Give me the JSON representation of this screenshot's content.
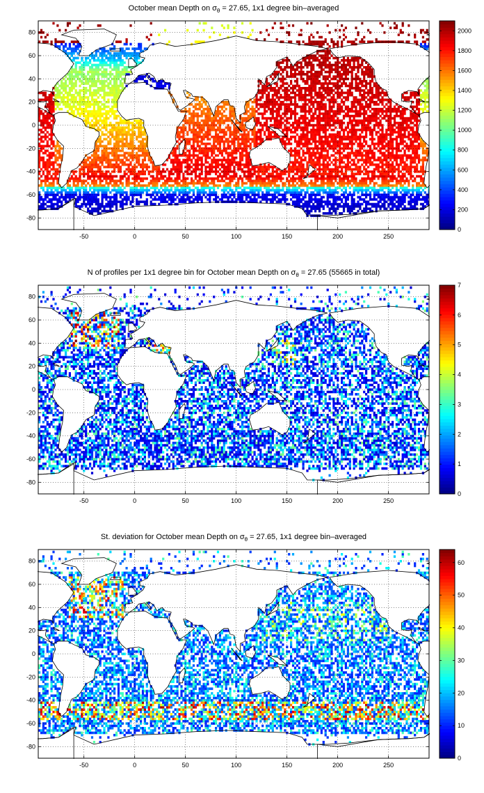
{
  "chart_data": [
    {
      "type": "heatmap",
      "title": {
        "pre": "October mean Depth on σ",
        "sub": "θ",
        "post": " = 27.65, 1x1 degree bin–averaged"
      },
      "x_ticks": [
        "-50",
        "0",
        "50",
        "100",
        "150",
        "200",
        "250"
      ],
      "x_values": [
        -50,
        0,
        50,
        100,
        150,
        200,
        250
      ],
      "xlim": [
        -95,
        290
      ],
      "y_ticks": [
        "80",
        "60",
        "40",
        "20",
        "0",
        "-20",
        "-40",
        "-60",
        "-80"
      ],
      "y_values": [
        80,
        60,
        40,
        20,
        0,
        -20,
        -40,
        -60,
        -80
      ],
      "ylim": [
        -90,
        90
      ],
      "grid": true,
      "colorbar": {
        "ticks": [
          "0",
          "200",
          "400",
          "600",
          "800",
          "1000",
          "1200",
          "1400",
          "1600",
          "1800",
          "2000"
        ],
        "values": [
          0,
          200,
          400,
          600,
          800,
          1000,
          1200,
          1400,
          1600,
          1800,
          2000
        ],
        "range": [
          0,
          2100
        ],
        "colormap": "jet"
      },
      "field": "mean_depth"
    },
    {
      "type": "heatmap",
      "title": {
        "pre": "N of profiles per 1x1 degree bin for October mean Depth on σ",
        "sub": "θ",
        "post": " = 27.65 (55665 in total)"
      },
      "x_ticks": [
        "-50",
        "0",
        "50",
        "100",
        "150",
        "200",
        "250"
      ],
      "x_values": [
        -50,
        0,
        50,
        100,
        150,
        200,
        250
      ],
      "xlim": [
        -95,
        290
      ],
      "y_ticks": [
        "80",
        "60",
        "40",
        "20",
        "0",
        "-20",
        "-40",
        "-60",
        "-80"
      ],
      "y_values": [
        80,
        60,
        40,
        20,
        0,
        -20,
        -40,
        -60,
        -80
      ],
      "ylim": [
        -90,
        90
      ],
      "grid": true,
      "colorbar": {
        "ticks": [
          "0",
          "1",
          "2",
          "3",
          "4",
          "5",
          "6",
          "7"
        ],
        "values": [
          0,
          1,
          2,
          3,
          4,
          5,
          6,
          7
        ],
        "range": [
          0,
          7
        ],
        "colormap": "jet"
      },
      "field": "profile_count"
    },
    {
      "type": "heatmap",
      "title": {
        "pre": "St. deviation for October mean Depth on σ",
        "sub": "θ",
        "post": " = 27.65, 1x1 degree bin–averaged"
      },
      "x_ticks": [
        "-50",
        "0",
        "50",
        "100",
        "150",
        "200",
        "250"
      ],
      "x_values": [
        -50,
        0,
        50,
        100,
        150,
        200,
        250
      ],
      "xlim": [
        -95,
        290
      ],
      "y_ticks": [
        "80",
        "60",
        "40",
        "20",
        "0",
        "-20",
        "-40",
        "-60",
        "-80"
      ],
      "y_values": [
        80,
        60,
        40,
        20,
        0,
        -20,
        -40,
        -60,
        -80
      ],
      "ylim": [
        -90,
        90
      ],
      "grid": true,
      "colorbar": {
        "ticks": [
          "0",
          "10",
          "20",
          "30",
          "40",
          "50",
          "60"
        ],
        "values": [
          0,
          10,
          20,
          30,
          40,
          50,
          60
        ],
        "range": [
          0,
          64
        ],
        "colormap": "jet"
      },
      "field": "std_dev"
    }
  ]
}
